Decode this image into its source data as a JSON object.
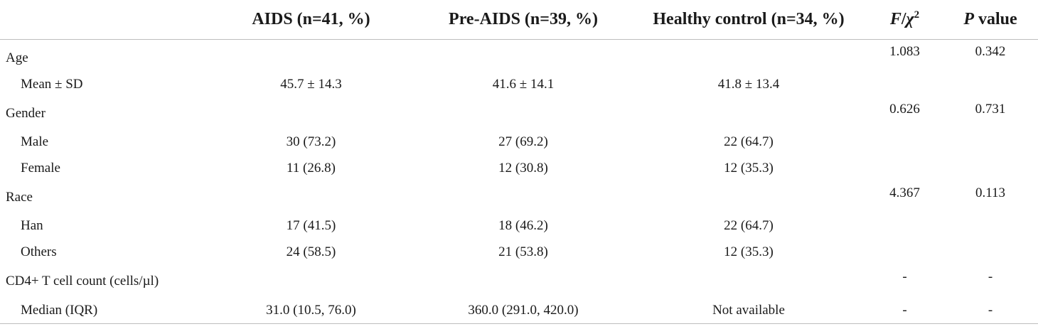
{
  "table": {
    "header": {
      "col0": "",
      "aids": "AIDS (n=41, %)",
      "pre_aids": "Pre-AIDS (n=39, %)",
      "control": "Healthy control (n=34, %)",
      "stat_f": "F",
      "stat_slash": "/",
      "stat_chi": "χ",
      "stat_sup": "2",
      "p_italic": "P",
      "p_rest": " value"
    },
    "rows": [
      {
        "label": "Age",
        "aids": "",
        "pre_aids": "",
        "control": "",
        "stat": "1.083",
        "p": "0.342"
      },
      {
        "label": "Mean ± SD",
        "aids": "45.7 ± 14.3",
        "pre_aids": "41.6 ± 14.1",
        "control": "41.8 ± 13.4",
        "stat": "",
        "p": ""
      },
      {
        "label": "Gender",
        "aids": "",
        "pre_aids": "",
        "control": "",
        "stat": "0.626",
        "p": "0.731"
      },
      {
        "label": "Male",
        "aids": "30 (73.2)",
        "pre_aids": "27 (69.2)",
        "control": "22 (64.7)",
        "stat": "",
        "p": ""
      },
      {
        "label": "Female",
        "aids": "11 (26.8)",
        "pre_aids": "12 (30.8)",
        "control": "12 (35.3)",
        "stat": "",
        "p": ""
      },
      {
        "label": "Race",
        "aids": "",
        "pre_aids": "",
        "control": "",
        "stat": "4.367",
        "p": "0.113"
      },
      {
        "label": "Han",
        "aids": "17 (41.5)",
        "pre_aids": "18 (46.2)",
        "control": "22 (64.7)",
        "stat": "",
        "p": ""
      },
      {
        "label": "Others",
        "aids": "24 (58.5)",
        "pre_aids": "21 (53.8)",
        "control": "12 (35.3)",
        "stat": "",
        "p": ""
      },
      {
        "label": "CD4+ T cell count (cells/µl)",
        "aids": "",
        "pre_aids": "",
        "control": "",
        "stat": "-",
        "p": "-"
      },
      {
        "label": "Median (IQR)",
        "aids": "31.0 (10.5, 76.0)",
        "pre_aids": "360.0 (291.0, 420.0)",
        "control": "Not available",
        "stat": "-",
        "p": "-"
      }
    ]
  }
}
